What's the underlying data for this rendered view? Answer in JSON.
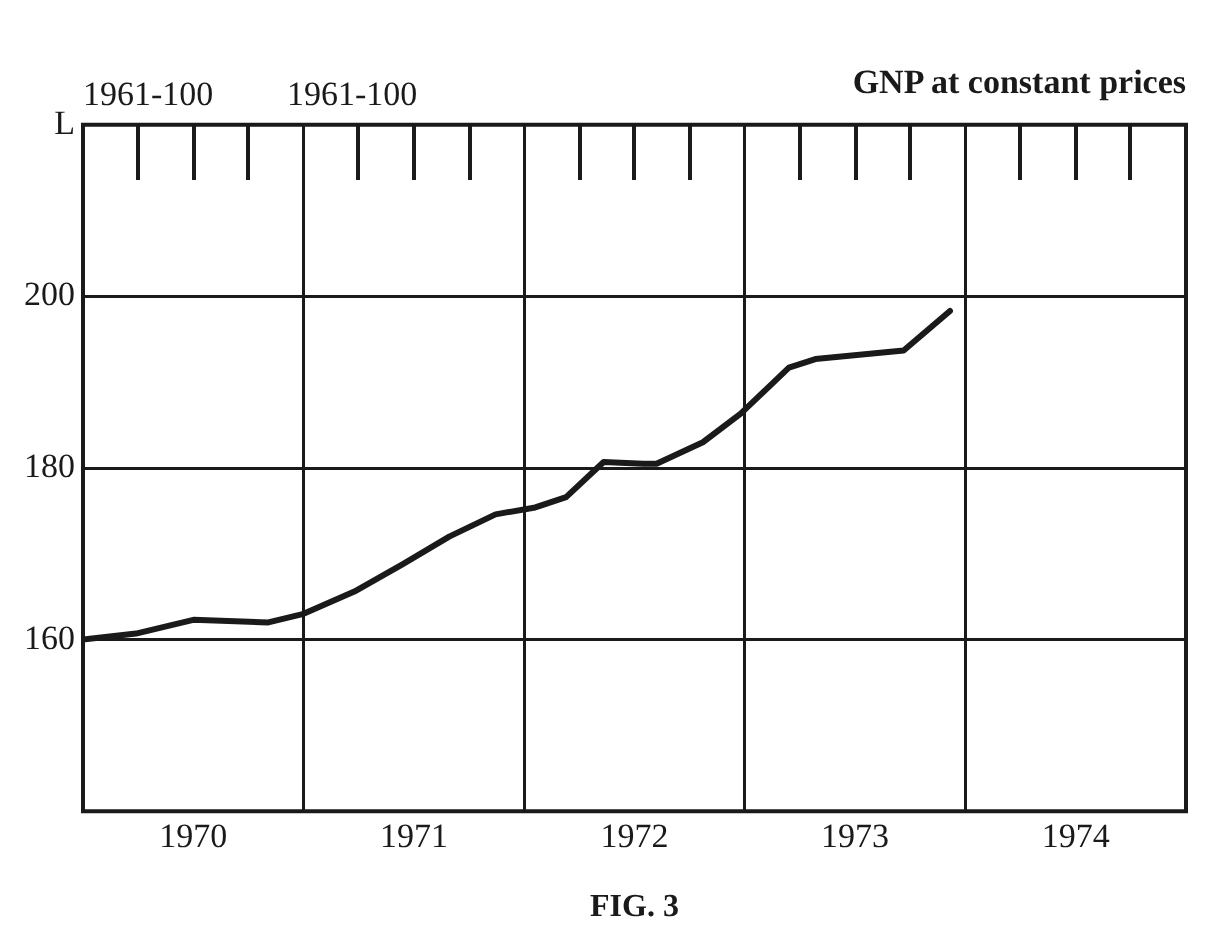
{
  "chart_data": {
    "type": "line",
    "title": "GNP at constant prices",
    "annotations": [
      "1961-100",
      "1961-100",
      "FIG. 3"
    ],
    "x": [
      1970.0,
      1970.24,
      1970.5,
      1970.84,
      1971.0,
      1971.23,
      1971.45,
      1971.66,
      1971.87,
      1972.05,
      1972.19,
      1972.36,
      1972.54,
      1972.6,
      1972.81,
      1972.98,
      1973.2,
      1973.32,
      1973.72,
      1973.93
    ],
    "series": [
      {
        "color": "#1a1a1a",
        "values": [
          160,
          160.7,
          162.3,
          162,
          163,
          165.6,
          168.8,
          172,
          174.6,
          175.4,
          176.6,
          180.7,
          180.5,
          180.5,
          183,
          186.3,
          191.7,
          192.7,
          193.7,
          198.3
        ]
      }
    ],
    "xlim": [
      1970,
      1975
    ],
    "xticks": [
      {
        "value": 1970,
        "label": null
      },
      {
        "value": 1970.5,
        "label": "1970"
      },
      {
        "value": 1971,
        "label": null
      },
      {
        "value": 1971.5,
        "label": "1971"
      },
      {
        "value": 1972,
        "label": null
      },
      {
        "value": 1972.5,
        "label": "1972"
      },
      {
        "value": 1973,
        "label": null
      },
      {
        "value": 1973.5,
        "label": "1973"
      },
      {
        "value": 1974,
        "label": null
      },
      {
        "value": 1974.5,
        "label": "1974"
      },
      {
        "value": 1975,
        "label": null
      }
    ],
    "ylim": [
      140,
      220
    ],
    "yticks": [
      160,
      180,
      200,
      {
        "value": 220,
        "label": "L"
      }
    ],
    "grid": true,
    "legend": false,
    "marker": "none",
    "line_style": "solid"
  }
}
